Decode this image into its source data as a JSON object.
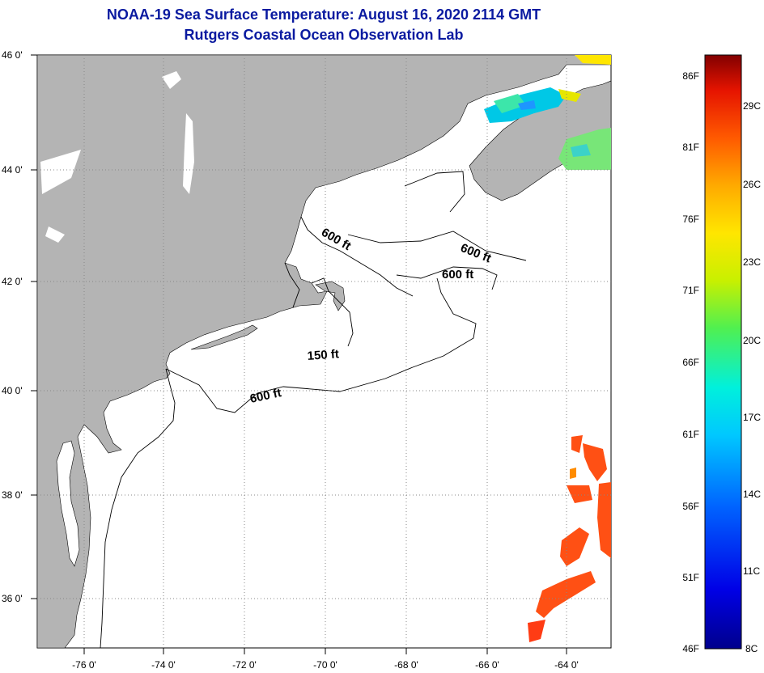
{
  "title": {
    "line1": "NOAA-19 Sea Surface Temperature:  August 16, 2020 2114 GMT",
    "line2": "Rutgers Coastal Ocean Observation Lab"
  },
  "map": {
    "lat_labels": [
      "46 0'",
      "44 0'",
      "42 0'",
      "40 0'",
      "38 0'",
      "36 0'"
    ],
    "lon_labels": [
      "-76 0'",
      "-74 0'",
      "-72 0'",
      "-70 0'",
      "-68 0'",
      "-66 0'",
      "-64 0'"
    ],
    "contour_labels": [
      "600 ft",
      "600 ft",
      "600 ft",
      "150 ft",
      "600 ft"
    ]
  },
  "colorbar": {
    "fahrenheit": [
      "86F",
      "81F",
      "76F",
      "71F",
      "66F",
      "61F",
      "56F",
      "51F",
      "46F"
    ],
    "celsius": [
      "29C",
      "26C",
      "23C",
      "20C",
      "17C",
      "14C",
      "11C",
      "8C"
    ]
  },
  "colors": {
    "land": "#b4b4b4",
    "title": "#0a1aa0"
  }
}
